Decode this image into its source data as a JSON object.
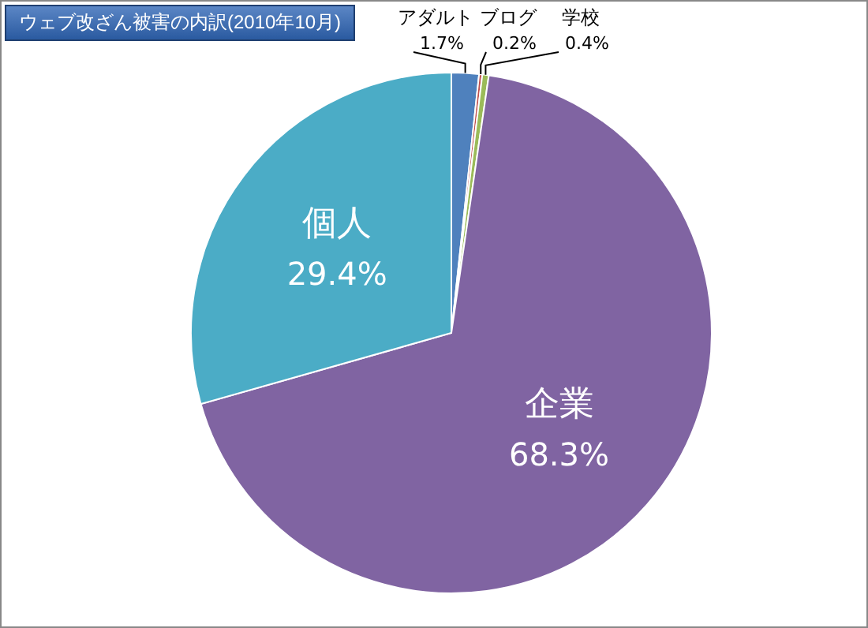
{
  "chart_data": {
    "type": "pie",
    "title": "ウェブ改ざん被害の内訳(2010年10月)",
    "categories": [
      "アダルト",
      "ブログ",
      "学校",
      "企業",
      "個人"
    ],
    "values": [
      1.7,
      0.2,
      0.4,
      68.3,
      29.4
    ],
    "colors": [
      "#4f81bd",
      "#c0504d",
      "#9bbb59",
      "#8064a2",
      "#4bacc6"
    ],
    "value_labels": [
      "1.7%",
      "0.2%",
      "0.4%",
      "68.3%",
      "29.4%"
    ],
    "legend": false
  }
}
